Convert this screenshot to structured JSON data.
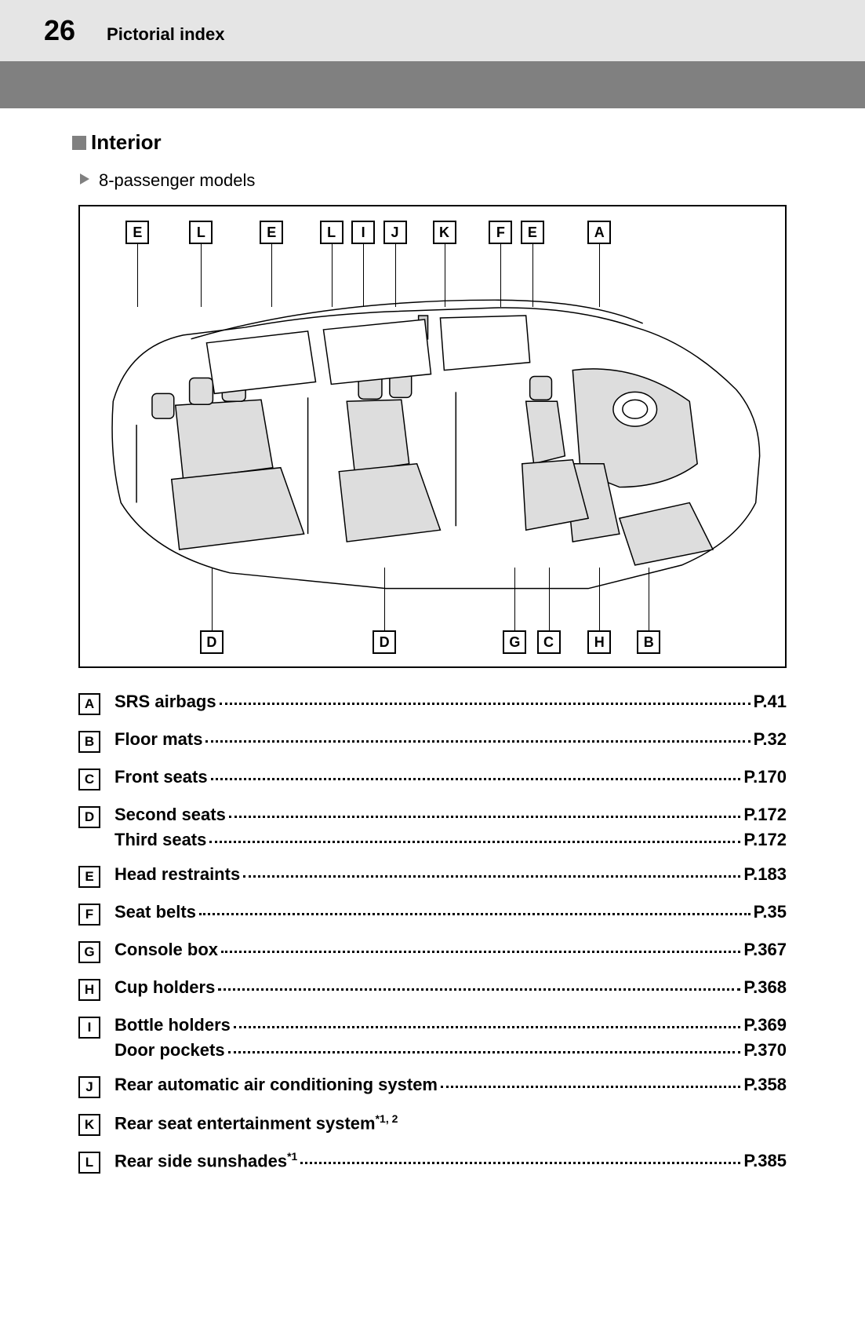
{
  "header": {
    "page_number": "26",
    "title": "Pictorial index"
  },
  "section": {
    "title": "Interior",
    "subtitle": "8-passenger models"
  },
  "diagram": {
    "top_callouts": [
      {
        "letter": "E",
        "left_pct": 6.5
      },
      {
        "letter": "L",
        "left_pct": 15.5
      },
      {
        "letter": "E",
        "left_pct": 25.5
      },
      {
        "letter": "L",
        "left_pct": 34.0
      },
      {
        "letter": "I",
        "left_pct": 38.5
      },
      {
        "letter": "J",
        "left_pct": 43.0
      },
      {
        "letter": "K",
        "left_pct": 50.0
      },
      {
        "letter": "F",
        "left_pct": 58.0
      },
      {
        "letter": "E",
        "left_pct": 62.5
      },
      {
        "letter": "A",
        "left_pct": 72.0
      }
    ],
    "bottom_callouts": [
      {
        "letter": "D",
        "left_pct": 17.0
      },
      {
        "letter": "D",
        "left_pct": 41.5
      },
      {
        "letter": "G",
        "left_pct": 60.0
      },
      {
        "letter": "C",
        "left_pct": 64.8
      },
      {
        "letter": "H",
        "left_pct": 72.0
      },
      {
        "letter": "B",
        "left_pct": 79.0
      }
    ]
  },
  "index": [
    {
      "letter": "A",
      "lines": [
        {
          "name": "SRS airbags",
          "page": "P.41"
        }
      ]
    },
    {
      "letter": "B",
      "lines": [
        {
          "name": "Floor mats",
          "page": "P.32"
        }
      ]
    },
    {
      "letter": "C",
      "lines": [
        {
          "name": "Front seats",
          "page": "P.170"
        }
      ]
    },
    {
      "letter": "D",
      "lines": [
        {
          "name": "Second seats",
          "page": "P.172"
        },
        {
          "name": "Third seats",
          "page": "P.172"
        }
      ]
    },
    {
      "letter": "E",
      "lines": [
        {
          "name": "Head restraints",
          "page": "P.183"
        }
      ]
    },
    {
      "letter": "F",
      "lines": [
        {
          "name": "Seat belts",
          "page": "P.35"
        }
      ]
    },
    {
      "letter": "G",
      "lines": [
        {
          "name": "Console box",
          "page": "P.367"
        }
      ]
    },
    {
      "letter": "H",
      "lines": [
        {
          "name": "Cup holders",
          "page": "P.368"
        }
      ]
    },
    {
      "letter": "I",
      "lines": [
        {
          "name": "Bottle holders",
          "page": "P.369"
        },
        {
          "name": "Door pockets",
          "page": "P.370"
        }
      ]
    },
    {
      "letter": "J",
      "lines": [
        {
          "name": "Rear automatic air conditioning system",
          "page": "P.358"
        }
      ]
    },
    {
      "letter": "K",
      "lines": [
        {
          "name": "Rear seat entertainment system",
          "superscript": "*1, 2",
          "page": ""
        }
      ]
    },
    {
      "letter": "L",
      "lines": [
        {
          "name": "Rear side sunshades",
          "superscript": "*1",
          "page": "P.385"
        }
      ]
    }
  ]
}
